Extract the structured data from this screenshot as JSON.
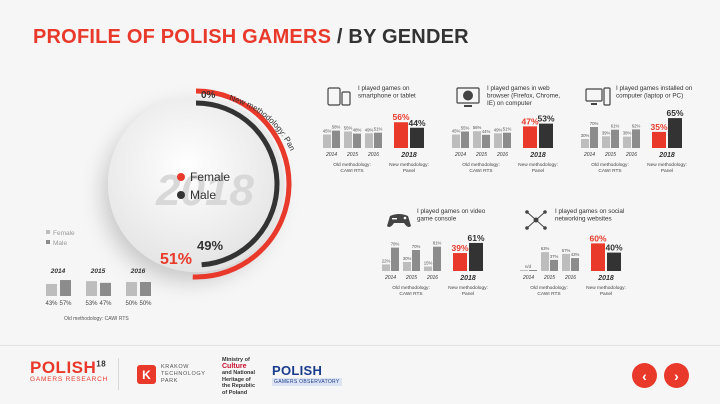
{
  "header": {
    "title_red": "PROFILE OF POLISH GAMERS",
    "title_dark": "/ BY GENDER"
  },
  "donut": {
    "zero_label": "0%",
    "arc_label": "New methodology: Panel",
    "year": "2018",
    "female_label": "Female",
    "male_label": "Male",
    "female_value": "51%",
    "male_value": "49%",
    "female_pct": 51,
    "male_pct": 49
  },
  "legend_old": {
    "female": "Female",
    "male": "Male"
  },
  "colors": {
    "female": "#e8392b",
    "male": "#333333",
    "old_female": "#bdbdbd",
    "old_male": "#8c8c8c"
  },
  "old_gender": {
    "years": [
      {
        "year": "2014",
        "female": "43%",
        "male": "57%"
      },
      {
        "year": "2015",
        "female": "53%",
        "male": "47%"
      },
      {
        "year": "2016",
        "female": "50%",
        "male": "50%"
      }
    ],
    "note": "Old methodology: CAWI RTS"
  },
  "chart_data": [
    {
      "type": "bar",
      "title": "I played games on smartphone or tablet",
      "icon": "smartphone-tablet-icon",
      "old_note": "Old methodology: CAWI RTS",
      "new_note": "New methodology: Panel",
      "old": [
        {
          "year": "2014",
          "female": "45%",
          "male": "58%"
        },
        {
          "year": "2015",
          "female": "55%",
          "male": "48%"
        },
        {
          "year": "2016",
          "female": "49%",
          "male": "51%"
        }
      ],
      "new": {
        "year": "2018",
        "female": "56%",
        "male": "44%"
      }
    },
    {
      "type": "bar",
      "title": "I played games in web browser (Firefox, Chrome, IE) on computer",
      "icon": "web-browser-icon",
      "old_note": "Old methodology: CAWI RTS",
      "new_note": "New methodology: Panel",
      "old": [
        {
          "year": "2014",
          "female": "45%",
          "male": "55%"
        },
        {
          "year": "2015",
          "female": "56%",
          "male": "44%"
        },
        {
          "year": "2016",
          "female": "49%",
          "male": "51%"
        }
      ],
      "new": {
        "year": "2018",
        "female": "47%",
        "male": "53%"
      }
    },
    {
      "type": "bar",
      "title": "I played games installed on computer (laptop or PC)",
      "icon": "desktop-computer-icon",
      "old_note": "Old methodology: CAWI RTS",
      "new_note": "New methodology: Panel",
      "old": [
        {
          "year": "2014",
          "female": "30%",
          "male": "70%"
        },
        {
          "year": "2015",
          "female": "39%",
          "male": "61%"
        },
        {
          "year": "2016",
          "female": "38%",
          "male": "62%"
        }
      ],
      "new": {
        "year": "2018",
        "female": "35%",
        "male": "65%"
      }
    },
    {
      "type": "bar",
      "title": "I played games on video game console",
      "icon": "gamepad-icon",
      "old_note": "Old methodology: CAWI RTS",
      "new_note": "New methodology: Panel",
      "old": [
        {
          "year": "2014",
          "female": "22%",
          "male": "78%"
        },
        {
          "year": "2015",
          "female": "30%",
          "male": "70%"
        },
        {
          "year": "2016",
          "female": "15%",
          "male": "81%"
        }
      ],
      "new": {
        "year": "2018",
        "female": "39%",
        "male": "61%"
      }
    },
    {
      "type": "bar",
      "title": "I played games on social networking websites",
      "icon": "social-network-icon",
      "old_note": "Old methodology: CAWI RTS",
      "new_note": "New methodology: Panel",
      "old": [
        {
          "year": "2014",
          "female": "n/d",
          "male": "n/d"
        },
        {
          "year": "2015",
          "female": "63%",
          "male": "37%"
        },
        {
          "year": "2016",
          "female": "57%",
          "male": "43%"
        }
      ],
      "new": {
        "year": "2018",
        "female": "60%",
        "male": "40%"
      }
    }
  ],
  "footer": {
    "logo1_main": "POLISH",
    "logo1_sup": "18",
    "logo1_sub": "GAMERS RESEARCH",
    "logo2_letter": "K",
    "logo2_l1": "KRAKOW",
    "logo2_l2": "TECHNOLOGY",
    "logo2_l3": "PARK",
    "logo3_l1": "Ministry of",
    "logo3_l2": "Culture",
    "logo3_l3": "and National",
    "logo3_l4": "Heritage of",
    "logo3_l5": "the Republic",
    "logo3_l6": "of Poland",
    "logo4_main": "POLISH",
    "logo4_sub": "GAMERS OBSERVATORY",
    "prev_icon": "‹",
    "next_icon": "›"
  }
}
